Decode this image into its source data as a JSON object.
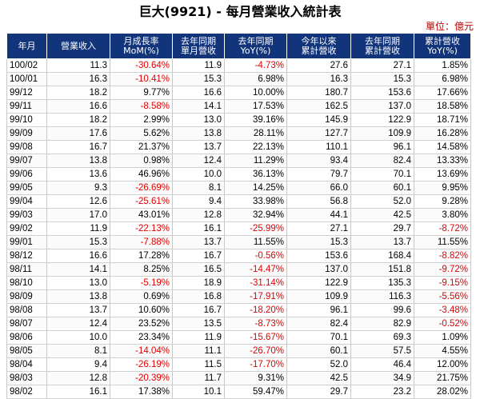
{
  "title": "巨大(9921) - 每月營業收入統計表",
  "unit_label": "單位：億元",
  "columns": [
    [
      "年月"
    ],
    [
      "營業收入"
    ],
    [
      "月成長率",
      "MoM(%)"
    ],
    [
      "去年同期",
      "單月營收"
    ],
    [
      "去年同期",
      "YoY(%)"
    ],
    [
      "今年以來",
      "累計營收"
    ],
    [
      "去年同期",
      "累計營收"
    ],
    [
      "累計營收",
      "YoY(%)"
    ]
  ],
  "rows": [
    [
      "100/02",
      "11.3",
      "-30.64%",
      "11.9",
      "-4.73%",
      "27.6",
      "27.1",
      "1.85%"
    ],
    [
      "100/01",
      "16.3",
      "-10.41%",
      "15.3",
      "6.98%",
      "16.3",
      "15.3",
      "6.98%"
    ],
    [
      "99/12",
      "18.2",
      "9.77%",
      "16.6",
      "10.00%",
      "180.7",
      "153.6",
      "17.66%"
    ],
    [
      "99/11",
      "16.6",
      "-8.58%",
      "14.1",
      "17.53%",
      "162.5",
      "137.0",
      "18.58%"
    ],
    [
      "99/10",
      "18.2",
      "2.99%",
      "13.0",
      "39.16%",
      "145.9",
      "122.9",
      "18.71%"
    ],
    [
      "99/09",
      "17.6",
      "5.62%",
      "13.8",
      "28.11%",
      "127.7",
      "109.9",
      "16.28%"
    ],
    [
      "99/08",
      "16.7",
      "21.37%",
      "13.7",
      "22.13%",
      "110.1",
      "96.1",
      "14.58%"
    ],
    [
      "99/07",
      "13.8",
      "0.98%",
      "12.4",
      "11.29%",
      "93.4",
      "82.4",
      "13.33%"
    ],
    [
      "99/06",
      "13.6",
      "46.96%",
      "10.0",
      "36.13%",
      "79.7",
      "70.1",
      "13.69%"
    ],
    [
      "99/05",
      "9.3",
      "-26.69%",
      "8.1",
      "14.25%",
      "66.0",
      "60.1",
      "9.95%"
    ],
    [
      "99/04",
      "12.6",
      "-25.61%",
      "9.4",
      "33.98%",
      "56.8",
      "52.0",
      "9.28%"
    ],
    [
      "99/03",
      "17.0",
      "43.01%",
      "12.8",
      "32.94%",
      "44.1",
      "42.5",
      "3.80%"
    ],
    [
      "99/02",
      "11.9",
      "-22.13%",
      "16.1",
      "-25.99%",
      "27.1",
      "29.7",
      "-8.72%"
    ],
    [
      "99/01",
      "15.3",
      "-7.88%",
      "13.7",
      "11.55%",
      "15.3",
      "13.7",
      "11.55%"
    ],
    [
      "98/12",
      "16.6",
      "17.28%",
      "16.7",
      "-0.56%",
      "153.6",
      "168.4",
      "-8.82%"
    ],
    [
      "98/11",
      "14.1",
      "8.25%",
      "16.5",
      "-14.47%",
      "137.0",
      "151.8",
      "-9.72%"
    ],
    [
      "98/10",
      "13.0",
      "-5.19%",
      "18.9",
      "-31.14%",
      "122.9",
      "135.3",
      "-9.15%"
    ],
    [
      "98/09",
      "13.8",
      "0.69%",
      "16.8",
      "-17.91%",
      "109.9",
      "116.3",
      "-5.56%"
    ],
    [
      "98/08",
      "13.7",
      "10.60%",
      "16.7",
      "-18.20%",
      "96.1",
      "99.6",
      "-3.48%"
    ],
    [
      "98/07",
      "12.4",
      "23.52%",
      "13.5",
      "-8.73%",
      "82.4",
      "82.9",
      "-0.52%"
    ],
    [
      "98/06",
      "10.0",
      "23.34%",
      "11.9",
      "-15.67%",
      "70.1",
      "69.3",
      "1.09%"
    ],
    [
      "98/05",
      "8.1",
      "-14.04%",
      "11.1",
      "-26.70%",
      "60.1",
      "57.5",
      "4.55%"
    ],
    [
      "98/04",
      "9.4",
      "-26.19%",
      "11.5",
      "-17.70%",
      "52.0",
      "46.4",
      "12.00%"
    ],
    [
      "98/03",
      "12.8",
      "-20.39%",
      "11.7",
      "9.31%",
      "42.5",
      "34.9",
      "21.75%"
    ],
    [
      "98/02",
      "16.1",
      "17.38%",
      "10.1",
      "59.47%",
      "29.7",
      "23.2",
      "28.02%"
    ]
  ],
  "colors": {
    "header_bg": "#12347a",
    "header_text": "#ffffff",
    "negative": "#e00000",
    "unit_text": "#c00000"
  }
}
